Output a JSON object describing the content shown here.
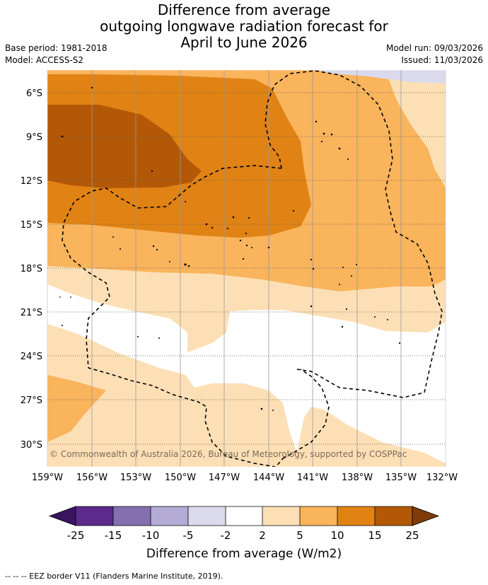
{
  "title": {
    "line1": "Difference from average",
    "line2": "outgoing longwave radiation forecast for",
    "line3": "April to June 2026"
  },
  "meta": {
    "base_period": "Base period: 1981-2018",
    "model": "Model: ACCESS-S2",
    "model_run": "Model run: 09/03/2026",
    "issued": "Issued: 11/03/2026"
  },
  "map": {
    "lon_range": [
      -159,
      -132
    ],
    "lat_range": [
      -32.5,
      -4.5
    ],
    "lat_ticks": [
      {
        "value": -6,
        "label": "6°S"
      },
      {
        "value": -9,
        "label": "9°S"
      },
      {
        "value": -12,
        "label": "12°S"
      },
      {
        "value": -15,
        "label": "15°S"
      },
      {
        "value": -18,
        "label": "18°S"
      },
      {
        "value": -21,
        "label": "21°S"
      },
      {
        "value": -24,
        "label": "24°S"
      },
      {
        "value": -27,
        "label": "27°S"
      },
      {
        "value": -30,
        "label": "30°S"
      }
    ],
    "lon_ticks": [
      {
        "value": -159,
        "label": "159°W"
      },
      {
        "value": -156,
        "label": "156°W"
      },
      {
        "value": -153,
        "label": "153°W"
      },
      {
        "value": -150,
        "label": "150°W"
      },
      {
        "value": -147,
        "label": "147°W"
      },
      {
        "value": -144,
        "label": "144°W"
      },
      {
        "value": -141,
        "label": "141°W"
      },
      {
        "value": -138,
        "label": "138°W"
      },
      {
        "value": -135,
        "label": "135°W"
      },
      {
        "value": -132,
        "label": "132°W"
      }
    ],
    "copyright": "© Commonwealth of Australia 2026, Bureau of Meteorology, supported by COSPPac"
  },
  "colorbar": {
    "ticks": [
      "-25",
      "-15",
      "-10",
      "-5",
      "-2",
      "2",
      "5",
      "10",
      "15",
      "25"
    ],
    "colors": [
      "#3a1460",
      "#5c2a8c",
      "#8470b0",
      "#b3abd3",
      "#dadaec",
      "#ffffff",
      "#fddfb5",
      "#f9b45c",
      "#e08214",
      "#b35806",
      "#7f3b08"
    ],
    "label": "Difference from average (W/m2)"
  },
  "footer": {
    "eez_note": "-- -- -- EEZ border V11 (Flanders Marine Institute, 2019)."
  }
}
